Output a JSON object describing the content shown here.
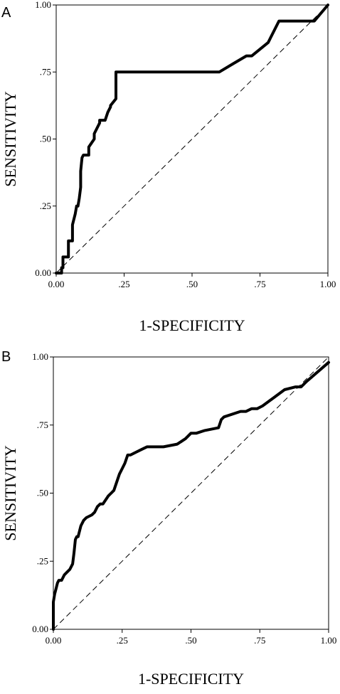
{
  "figure": {
    "panels": [
      {
        "label": "A"
      },
      {
        "label": "B"
      }
    ]
  },
  "chart_data": [
    {
      "type": "line",
      "panel_label": "A",
      "xlabel": "1-SPECIFICITY",
      "ylabel": "SENSITIVITY",
      "xlim": [
        0,
        1
      ],
      "ylim": [
        0,
        1
      ],
      "xticks": [
        "0.00",
        ".25",
        ".50",
        ".75",
        "1.00"
      ],
      "yticks": [
        "0.00",
        ".25",
        ".50",
        ".75",
        "1.00"
      ],
      "tick_values": [
        0,
        0.25,
        0.5,
        0.75,
        1
      ],
      "grid": false,
      "series": [
        {
          "style": "solid-thick",
          "x": [
            0.0,
            0.02,
            0.02,
            0.025,
            0.025,
            0.045,
            0.045,
            0.06,
            0.06,
            0.07,
            0.075,
            0.08,
            0.085,
            0.09,
            0.09,
            0.095,
            0.1,
            0.12,
            0.12,
            0.14,
            0.14,
            0.16,
            0.16,
            0.18,
            0.19,
            0.2,
            0.2,
            0.22,
            0.22,
            0.6,
            0.65,
            0.7,
            0.72,
            0.78,
            0.82,
            0.95,
            1.0
          ],
          "y": [
            0.0,
            0.0,
            0.02,
            0.02,
            0.06,
            0.06,
            0.12,
            0.12,
            0.18,
            0.22,
            0.25,
            0.25,
            0.28,
            0.32,
            0.38,
            0.43,
            0.44,
            0.44,
            0.47,
            0.5,
            0.52,
            0.56,
            0.57,
            0.57,
            0.6,
            0.62,
            0.625,
            0.65,
            0.75,
            0.75,
            0.78,
            0.81,
            0.81,
            0.86,
            0.94,
            0.94,
            1.0
          ]
        },
        {
          "style": "dashed-reference",
          "x": [
            0,
            1
          ],
          "y": [
            0,
            1
          ]
        }
      ]
    },
    {
      "type": "line",
      "panel_label": "B",
      "xlabel": "1-SPECIFICITY",
      "ylabel": "SENSITIVITY",
      "xlim": [
        0,
        1
      ],
      "ylim": [
        0,
        1
      ],
      "xticks": [
        "0.00",
        ".25",
        ".50",
        ".75",
        "1.00"
      ],
      "yticks": [
        "0.00",
        ".25",
        ".50",
        ".75",
        "1.00"
      ],
      "tick_values": [
        0,
        0.25,
        0.5,
        0.75,
        1
      ],
      "grid": false,
      "series": [
        {
          "style": "solid-thick",
          "x": [
            0.0,
            0.0,
            0.005,
            0.01,
            0.015,
            0.02,
            0.03,
            0.04,
            0.05,
            0.06,
            0.07,
            0.075,
            0.08,
            0.085,
            0.09,
            0.1,
            0.11,
            0.12,
            0.14,
            0.15,
            0.16,
            0.17,
            0.18,
            0.2,
            0.21,
            0.22,
            0.23,
            0.24,
            0.25,
            0.26,
            0.27,
            0.28,
            0.3,
            0.32,
            0.34,
            0.36,
            0.4,
            0.45,
            0.48,
            0.5,
            0.52,
            0.55,
            0.6,
            0.61,
            0.62,
            0.68,
            0.7,
            0.72,
            0.74,
            0.76,
            0.8,
            0.84,
            0.88,
            0.9,
            0.92,
            1.0
          ],
          "y": [
            0.0,
            0.1,
            0.13,
            0.15,
            0.17,
            0.18,
            0.18,
            0.2,
            0.21,
            0.22,
            0.24,
            0.28,
            0.33,
            0.34,
            0.34,
            0.38,
            0.4,
            0.41,
            0.42,
            0.43,
            0.45,
            0.46,
            0.46,
            0.49,
            0.5,
            0.51,
            0.54,
            0.57,
            0.59,
            0.61,
            0.64,
            0.64,
            0.65,
            0.66,
            0.67,
            0.67,
            0.67,
            0.68,
            0.7,
            0.72,
            0.72,
            0.73,
            0.74,
            0.77,
            0.78,
            0.8,
            0.8,
            0.81,
            0.81,
            0.82,
            0.85,
            0.88,
            0.89,
            0.89,
            0.91,
            0.98
          ]
        },
        {
          "style": "dashed-reference",
          "x": [
            0,
            1
          ],
          "y": [
            0,
            1
          ]
        }
      ]
    }
  ]
}
